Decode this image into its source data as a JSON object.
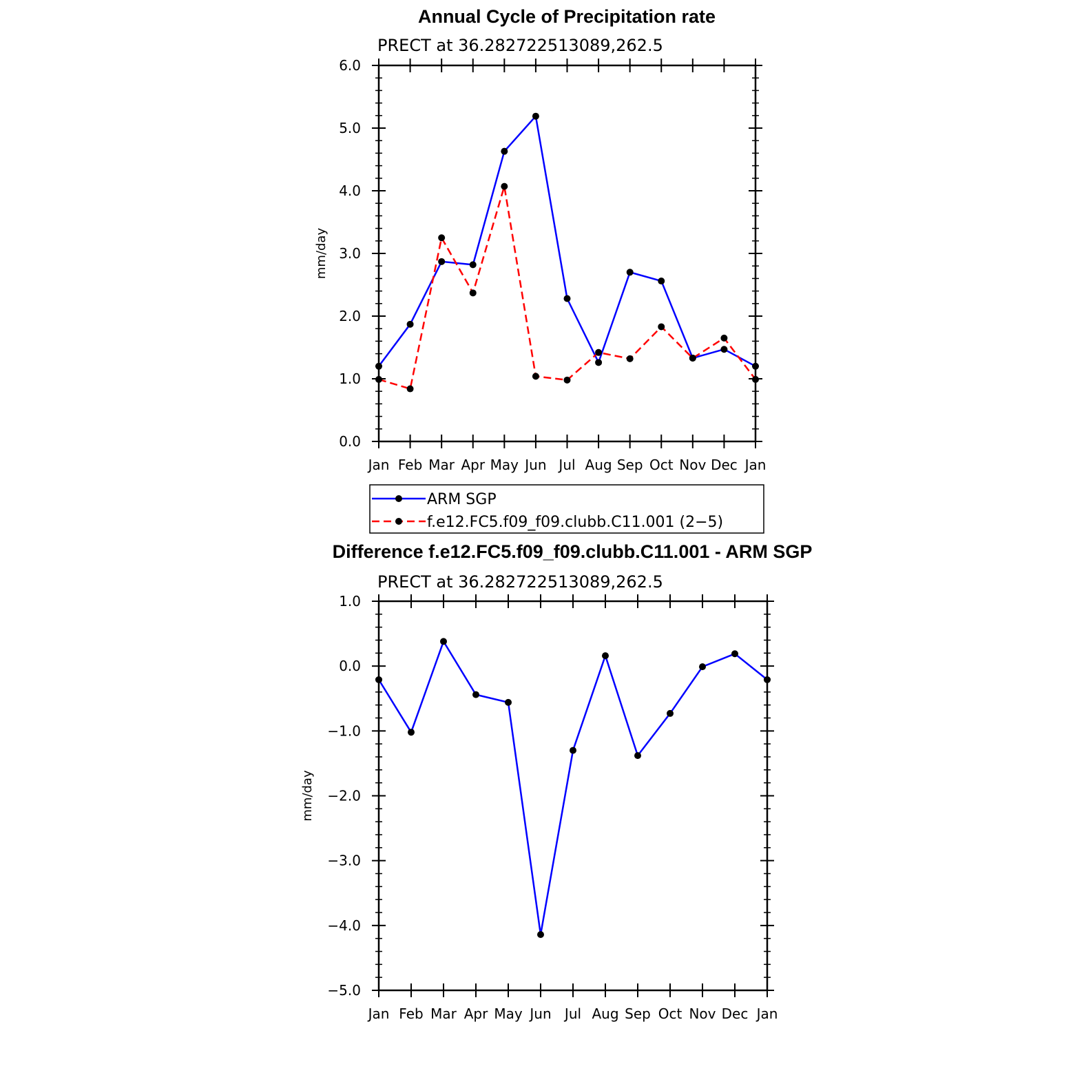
{
  "chart_data": [
    {
      "type": "line",
      "title": "Annual Cycle of Precipitation rate",
      "subtitle": "PRECT at 36.282722513089,262.5",
      "xlabel": "",
      "ylabel": "mm/day",
      "categories": [
        "Jan",
        "Feb",
        "Mar",
        "Apr",
        "May",
        "Jun",
        "Jul",
        "Aug",
        "Sep",
        "Oct",
        "Nov",
        "Dec",
        "Jan"
      ],
      "ylim": [
        0,
        6
      ],
      "yticks": [
        "0.0",
        "1.0",
        "2.0",
        "3.0",
        "4.0",
        "5.0",
        "6.0"
      ],
      "series": [
        {
          "name": "ARM SGP",
          "color": "#0000ff",
          "dash": "solid",
          "values": [
            1.2,
            1.87,
            2.87,
            2.82,
            4.63,
            5.19,
            2.28,
            1.26,
            2.7,
            2.56,
            1.33,
            1.47,
            1.2
          ]
        },
        {
          "name": "f.e12.FC5.f09_f09.clubb.C11.001 (2−5)",
          "color": "#ff0000",
          "dash": "dashed",
          "values": [
            0.99,
            0.84,
            3.25,
            2.37,
            4.07,
            1.04,
            0.98,
            1.42,
            1.32,
            1.83,
            1.33,
            1.65,
            0.99
          ]
        }
      ],
      "legend": "below"
    },
    {
      "type": "line",
      "title": "Difference f.e12.FC5.f09_f09.clubb.C11.001 - ARM SGP",
      "subtitle": "PRECT at 36.282722513089,262.5",
      "xlabel": "",
      "ylabel": "mm/day",
      "categories": [
        "Jan",
        "Feb",
        "Mar",
        "Apr",
        "May",
        "Jun",
        "Jul",
        "Aug",
        "Sep",
        "Oct",
        "Nov",
        "Dec",
        "Jan"
      ],
      "ylim": [
        -5,
        1
      ],
      "yticks": [
        "−5.0",
        "−4.0",
        "−3.0",
        "−2.0",
        "−1.0",
        "0.0",
        "1.0"
      ],
      "series": [
        {
          "name": "Difference",
          "color": "#0000ff",
          "dash": "solid",
          "values": [
            -0.21,
            -1.02,
            0.38,
            -0.44,
            -0.56,
            -4.14,
            -1.3,
            0.16,
            -1.38,
            -0.73,
            -0.01,
            0.19,
            -0.21
          ]
        }
      ]
    }
  ]
}
